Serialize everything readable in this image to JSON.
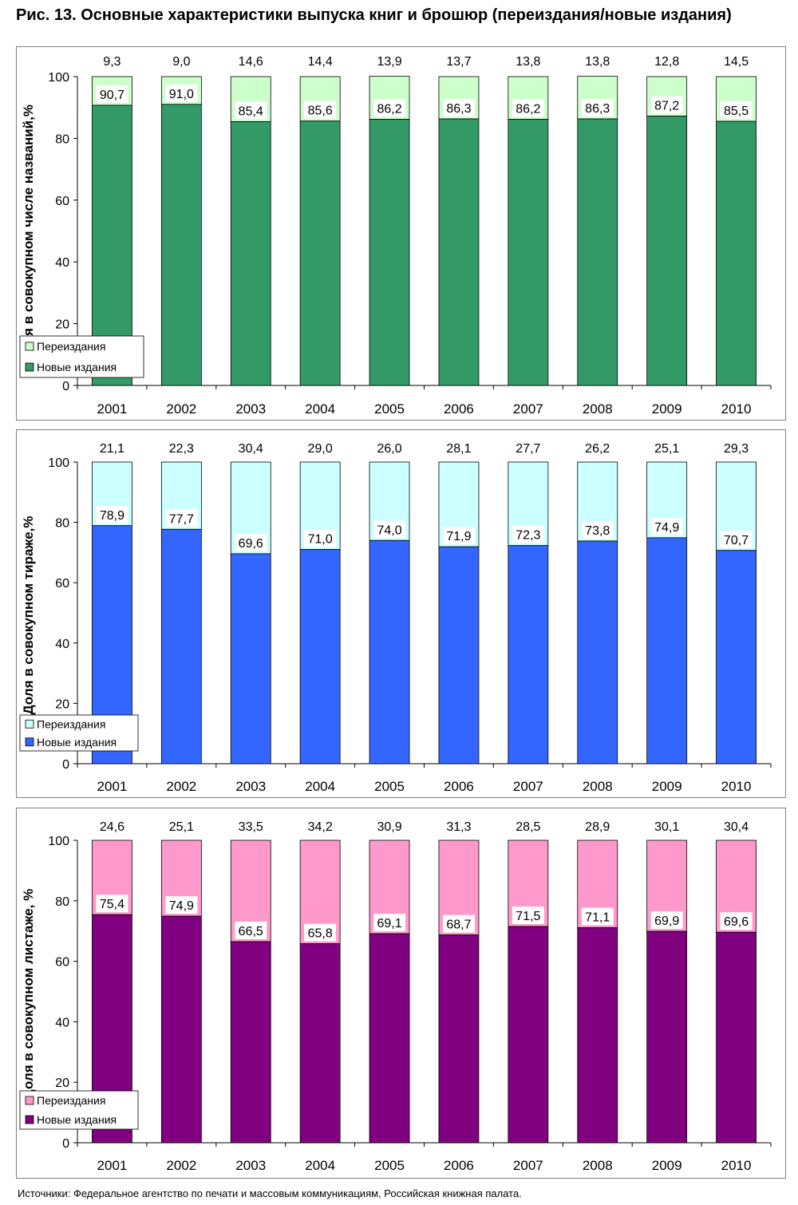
{
  "figure": {
    "title": "Рис. 13. Основные характеристики выпуска книг и брошюр (переиздания/новые издания)",
    "source": "Источники: Федеральное агентство по печати и массовым коммуникациям, Российская книжная палата."
  },
  "colors": {
    "chart1_new": "#339966",
    "chart1_reprint": "#ccffcc",
    "chart2_new": "#3366ff",
    "chart2_reprint": "#ccffff",
    "chart3_new": "#800080",
    "chart3_reprint": "#ff99cc"
  },
  "chart_data": [
    {
      "type": "bar",
      "stacked": true,
      "ylabel": "Доля в совокупном числе названий,%",
      "ylim": [
        0,
        100
      ],
      "yticks": [
        0,
        20,
        40,
        60,
        80,
        100
      ],
      "legend_position": "bottom-left",
      "categories": [
        "2001",
        "2002",
        "2003",
        "2004",
        "2005",
        "2006",
        "2007",
        "2008",
        "2009",
        "2010"
      ],
      "series": [
        {
          "name": "Новые издания",
          "values": [
            90.7,
            91.0,
            85.4,
            85.6,
            86.2,
            86.3,
            86.2,
            86.3,
            87.2,
            85.5
          ],
          "labels": [
            "90,7",
            "91,0",
            "85,4",
            "85,6",
            "86,2",
            "86,3",
            "86,2",
            "86,3",
            "87,2",
            "85,5"
          ]
        },
        {
          "name": "Переиздания",
          "values": [
            9.3,
            9.0,
            14.6,
            14.4,
            13.9,
            13.7,
            13.8,
            13.8,
            12.8,
            14.5
          ],
          "labels": [
            "9,3",
            "9,0",
            "14,6",
            "14,4",
            "13,9",
            "13,7",
            "13,8",
            "13,8",
            "12,8",
            "14,5"
          ]
        }
      ]
    },
    {
      "type": "bar",
      "stacked": true,
      "ylabel": "Доля в совокупном тираже,%",
      "ylim": [
        0,
        100
      ],
      "yticks": [
        0,
        20,
        40,
        60,
        80,
        100
      ],
      "legend_position": "bottom-left",
      "categories": [
        "2001",
        "2002",
        "2003",
        "2004",
        "2005",
        "2006",
        "2007",
        "2008",
        "2009",
        "2010"
      ],
      "series": [
        {
          "name": "Новые издания",
          "values": [
            78.9,
            77.7,
            69.6,
            71.0,
            74.0,
            71.9,
            72.3,
            73.8,
            74.9,
            70.7
          ],
          "labels": [
            "78,9",
            "77,7",
            "69,6",
            "71,0",
            "74,0",
            "71,9",
            "72,3",
            "73,8",
            "74,9",
            "70,7"
          ]
        },
        {
          "name": "Переиздания",
          "values": [
            21.1,
            22.3,
            30.4,
            29.0,
            26.0,
            28.1,
            27.7,
            26.2,
            25.1,
            29.3
          ],
          "labels": [
            "21,1",
            "22,3",
            "30,4",
            "29,0",
            "26,0",
            "28,1",
            "27,7",
            "26,2",
            "25,1",
            "29,3"
          ]
        }
      ]
    },
    {
      "type": "bar",
      "stacked": true,
      "ylabel": "Доля в совокупном листаже, %",
      "ylim": [
        0,
        100
      ],
      "yticks": [
        0,
        20,
        40,
        60,
        80,
        100
      ],
      "legend_position": "bottom-left",
      "categories": [
        "2001",
        "2002",
        "2003",
        "2004",
        "2005",
        "2006",
        "2007",
        "2008",
        "2009",
        "2010"
      ],
      "series": [
        {
          "name": "Новые издания",
          "values": [
            75.4,
            74.9,
            66.5,
            65.8,
            69.1,
            68.7,
            71.5,
            71.1,
            69.9,
            69.6
          ],
          "labels": [
            "75,4",
            "74,9",
            "66,5",
            "65,8",
            "69,1",
            "68,7",
            "71,5",
            "71,1",
            "69,9",
            "69,6"
          ]
        },
        {
          "name": "Переиздания",
          "values": [
            24.6,
            25.1,
            33.5,
            34.2,
            30.9,
            31.3,
            28.5,
            28.9,
            30.1,
            30.4
          ],
          "labels": [
            "24,6",
            "25,1",
            "33,5",
            "34,2",
            "30,9",
            "31,3",
            "28,5",
            "28,9",
            "30,1",
            "30,4"
          ]
        }
      ]
    }
  ]
}
